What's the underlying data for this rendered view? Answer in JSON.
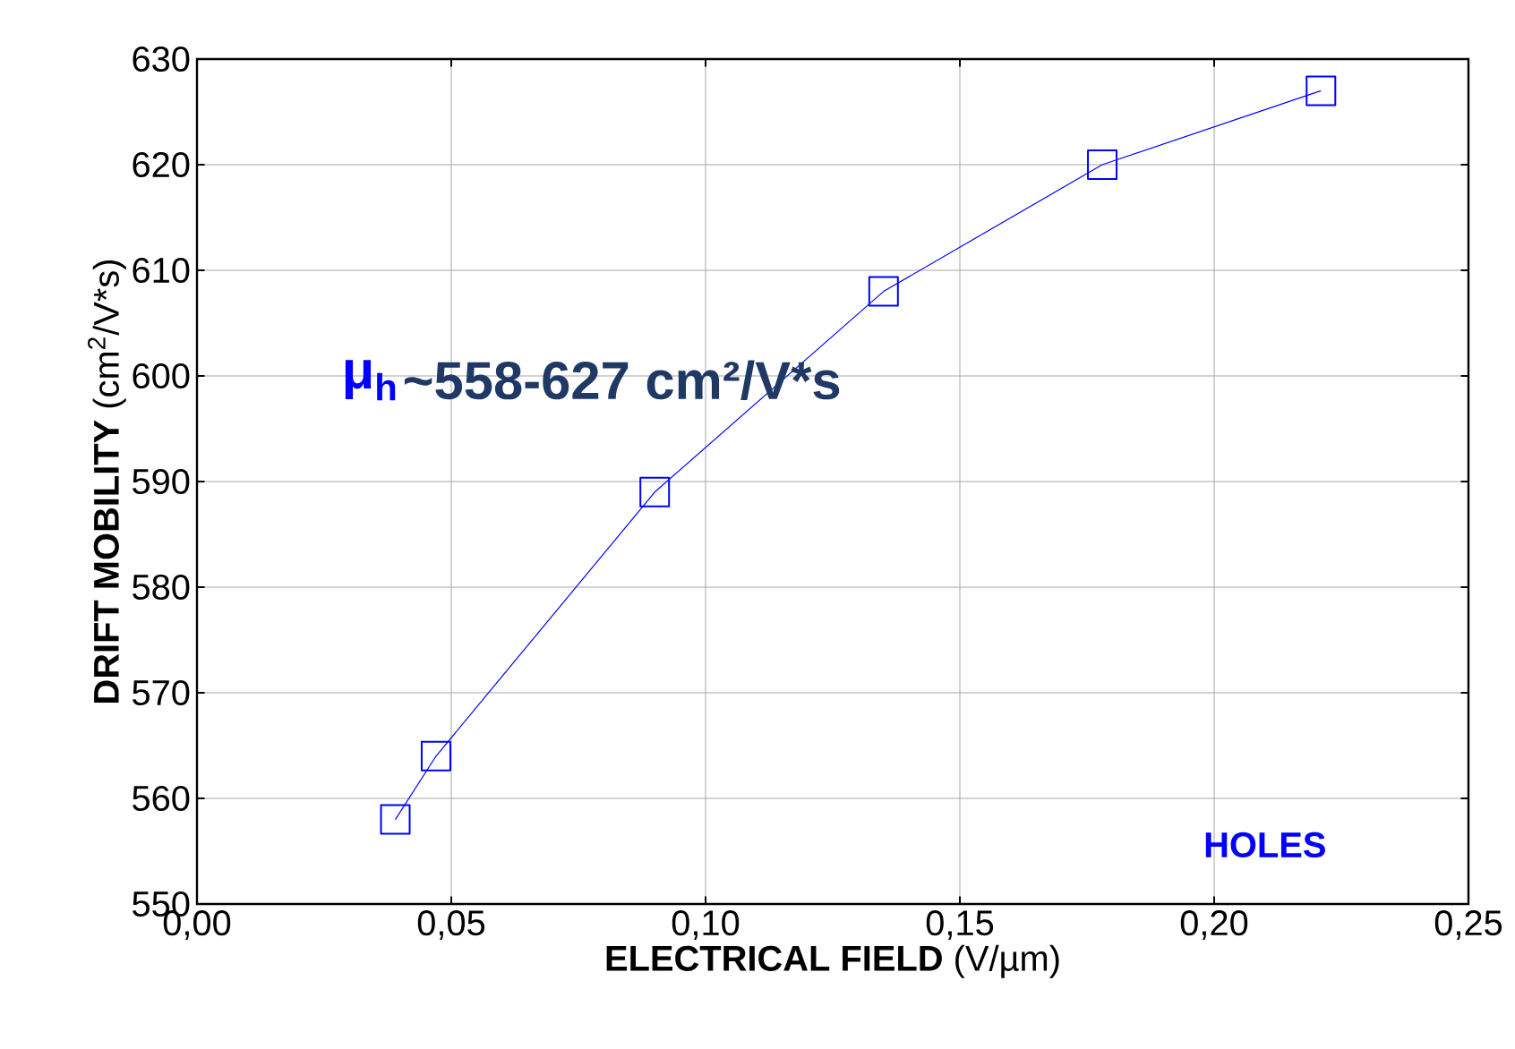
{
  "chart_data": {
    "type": "line",
    "xlabel": "**ELECTRICAL FIELD** (V/µm)",
    "ylabel": "**DRIFT MOBILITY** (cm$^{2}$/V*s)",
    "annotations": [
      "μ$_{h}$",
      "~558-627 cm²/V*s",
      "HOLES"
    ],
    "x": [
      0.039,
      0.047,
      0.09,
      0.135,
      0.178,
      0.221
    ],
    "series": [
      {
        "color": "#0000ff",
        "values": [
          558,
          564,
          589,
          608,
          620,
          627
        ]
      }
    ],
    "xlim": [
      0,
      0.25
    ],
    "xticks": [
      {
        "value": 0,
        "label": "0,00"
      },
      {
        "value": 0.05,
        "label": "0,05"
      },
      {
        "value": 0.1,
        "label": "0,10"
      },
      {
        "value": 0.15,
        "label": "0,15"
      },
      {
        "value": 0.2,
        "label": "0,20"
      },
      {
        "value": 0.25,
        "label": "0,25"
      }
    ],
    "ylim": [
      550,
      630
    ],
    "yticks": [
      550,
      560,
      570,
      580,
      590,
      600,
      610,
      620,
      630
    ],
    "grid": true,
    "marker": "square",
    "line_style": "solid"
  }
}
